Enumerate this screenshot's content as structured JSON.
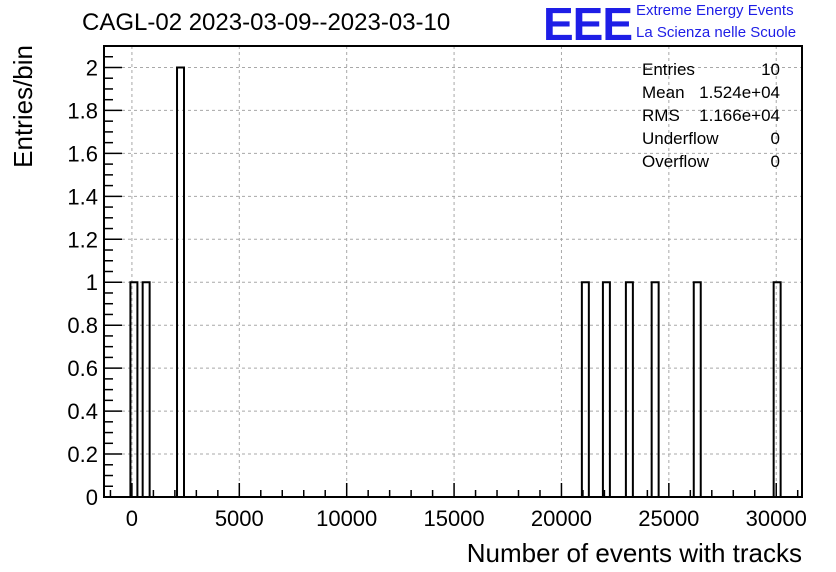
{
  "title": "CAGL-02 2023-03-09--2023-03-10",
  "logo": {
    "mark": "EEE",
    "line1": "Extreme Energy Events",
    "line2": "La Scienza nelle Scuole",
    "color": "#1e1ee6"
  },
  "stats": [
    {
      "name": "Entries",
      "value": "10"
    },
    {
      "name": "Mean",
      "value": "1.524e+04"
    },
    {
      "name": "RMS",
      "value": "1.166e+04"
    },
    {
      "name": "Underflow",
      "value": "0"
    },
    {
      "name": "Overflow",
      "value": "0"
    }
  ],
  "chart_data": {
    "type": "bar",
    "title": "CAGL-02 2023-03-09--2023-03-10",
    "xlabel": "Number of events with tracks",
    "ylabel": "Entries/bin",
    "xlim": [
      -1300,
      31200
    ],
    "ylim": [
      0,
      2.1
    ],
    "grid": true,
    "bin_width": 325,
    "bins": [
      {
        "x_low": -70,
        "x_high": 255,
        "count": 1
      },
      {
        "x_low": 500,
        "x_high": 825,
        "count": 1
      },
      {
        "x_low": 2100,
        "x_high": 2425,
        "count": 2
      },
      {
        "x_low": 20950,
        "x_high": 21275,
        "count": 1
      },
      {
        "x_low": 21930,
        "x_high": 22255,
        "count": 1
      },
      {
        "x_low": 23000,
        "x_high": 23325,
        "count": 1
      },
      {
        "x_low": 24200,
        "x_high": 24525,
        "count": 1
      },
      {
        "x_low": 26160,
        "x_high": 26485,
        "count": 1
      },
      {
        "x_low": 29880,
        "x_high": 30205,
        "count": 1
      }
    ],
    "x_ticks": [
      0,
      5000,
      10000,
      15000,
      20000,
      25000,
      30000
    ],
    "x_tick_labels": [
      "0",
      "5000",
      "10000",
      "15000",
      "20000",
      "25000",
      "30000"
    ],
    "y_ticks": [
      0,
      0.2,
      0.4,
      0.6,
      0.8,
      1,
      1.2,
      1.4,
      1.6,
      1.8,
      2
    ],
    "y_tick_labels": [
      "0",
      "0.2",
      "0.4",
      "0.6",
      "0.8",
      "1",
      "1.2",
      "1.4",
      "1.6",
      "1.8",
      "2"
    ]
  }
}
